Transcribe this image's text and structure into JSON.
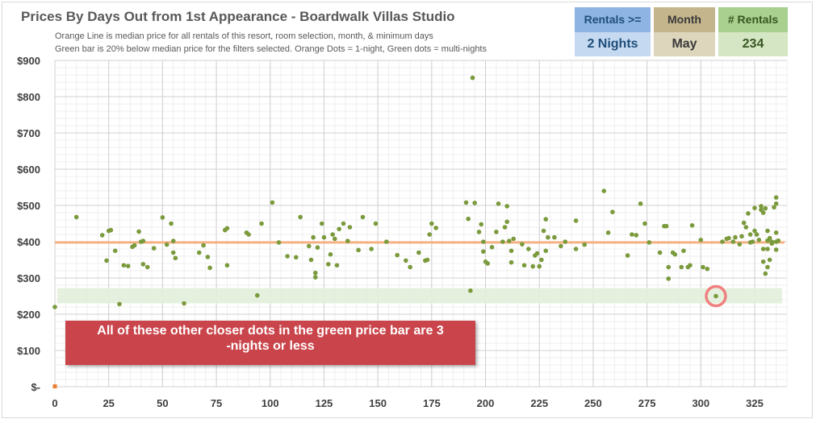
{
  "title": "Prices By Days Out from 1st Appearance - Boardwalk Villas Studio",
  "subtitle_lines": [
    "Orange Line is median price for all rentals of this resort, room selection, month, & minimum days",
    "Green bar is 20% below median price for the filters selected. Orange Dots = 1-night, Green dots = multi-nights"
  ],
  "filters": {
    "rentals": {
      "label": "Rentals >=",
      "value": "2 Nights"
    },
    "month": {
      "label": "Month",
      "value": "May"
    },
    "count": {
      "label": "# Rentals",
      "value": "234"
    }
  },
  "callout": {
    "line1": "All of these other closer dots in the green price bar are 3",
    "line2": "-nights or less"
  },
  "colors": {
    "median_line": "#f4b183",
    "green_dot": "#7a9a3c",
    "orange_dot": "#ed7d31",
    "green_bar": "#e2efda",
    "highlight_circle": "#f08080"
  },
  "chart_data": {
    "type": "scatter",
    "xlim": [
      0,
      340
    ],
    "ylim": [
      0,
      900
    ],
    "x_ticks": [
      0,
      25,
      50,
      75,
      100,
      125,
      150,
      175,
      200,
      225,
      250,
      275,
      300,
      325
    ],
    "y_ticks": [
      0,
      100,
      200,
      300,
      400,
      500,
      600,
      700,
      800,
      900
    ],
    "y_tick_labels": [
      "$-",
      "$100",
      "$200",
      "$300",
      "$400",
      "$500",
      "$600",
      "$700",
      "$800",
      "$900"
    ],
    "x_tick_labels": [
      "0",
      "25",
      "50",
      "75",
      "100",
      "125",
      "150",
      "175",
      "200",
      "225",
      "250",
      "275",
      "300",
      "325"
    ],
    "median_price": 398,
    "green_bar_range": [
      230,
      272
    ],
    "highlight_point": [
      307,
      250
    ],
    "grid": true,
    "series": [
      {
        "name": "1-night",
        "points": [
          [
            0,
            0
          ]
        ]
      },
      {
        "name": "multi-night",
        "points": [
          [
            0,
            220
          ],
          [
            10,
            468
          ],
          [
            22,
            418
          ],
          [
            24,
            348
          ],
          [
            25,
            430
          ],
          [
            26,
            432
          ],
          [
            28,
            375
          ],
          [
            30,
            228
          ],
          [
            32,
            335
          ],
          [
            34,
            333
          ],
          [
            36,
            386
          ],
          [
            37,
            390
          ],
          [
            39,
            428
          ],
          [
            40,
            400
          ],
          [
            41,
            402
          ],
          [
            41,
            338
          ],
          [
            43,
            330
          ],
          [
            46,
            382
          ],
          [
            50,
            467
          ],
          [
            52,
            392
          ],
          [
            54,
            450
          ],
          [
            55,
            402
          ],
          [
            55,
            370
          ],
          [
            56,
            355
          ],
          [
            60,
            230
          ],
          [
            67,
            370
          ],
          [
            69,
            390
          ],
          [
            71,
            358
          ],
          [
            72,
            328
          ],
          [
            79,
            432
          ],
          [
            80,
            437
          ],
          [
            80,
            335
          ],
          [
            89,
            425
          ],
          [
            90,
            420
          ],
          [
            94,
            252
          ],
          [
            96,
            450
          ],
          [
            101,
            508
          ],
          [
            104,
            398
          ],
          [
            108,
            360
          ],
          [
            112,
            357
          ],
          [
            114,
            468
          ],
          [
            118,
            388
          ],
          [
            119,
            350
          ],
          [
            120,
            412
          ],
          [
            121,
            302
          ],
          [
            121,
            314
          ],
          [
            122,
            384
          ],
          [
            124,
            450
          ],
          [
            125,
            412
          ],
          [
            127,
            338
          ],
          [
            128,
            365
          ],
          [
            129,
            420
          ],
          [
            130,
            408
          ],
          [
            131,
            335
          ],
          [
            132,
            435
          ],
          [
            134,
            450
          ],
          [
            136,
            402
          ],
          [
            137,
            440
          ],
          [
            141,
            377
          ],
          [
            143,
            468
          ],
          [
            147,
            380
          ],
          [
            149,
            450
          ],
          [
            154,
            400
          ],
          [
            159,
            363
          ],
          [
            163,
            348
          ],
          [
            165,
            330
          ],
          [
            169,
            370
          ],
          [
            172,
            348
          ],
          [
            173,
            350
          ],
          [
            174,
            420
          ],
          [
            175,
            450
          ],
          [
            177,
            438
          ],
          [
            191,
            508
          ],
          [
            192,
            463
          ],
          [
            193,
            265
          ],
          [
            194,
            852
          ],
          [
            195,
            507
          ],
          [
            197,
            427
          ],
          [
            198,
            448
          ],
          [
            199,
            400
          ],
          [
            199,
            373
          ],
          [
            200,
            345
          ],
          [
            201,
            340
          ],
          [
            203,
            385
          ],
          [
            205,
            427
          ],
          [
            206,
            505
          ],
          [
            208,
            400
          ],
          [
            209,
            440
          ],
          [
            210,
            498
          ],
          [
            210,
            455
          ],
          [
            211,
            402
          ],
          [
            212,
            375
          ],
          [
            212,
            343
          ],
          [
            213,
            408
          ],
          [
            217,
            393
          ],
          [
            218,
            335
          ],
          [
            220,
            380
          ],
          [
            222,
            332
          ],
          [
            223,
            362
          ],
          [
            224,
            368
          ],
          [
            225,
            332
          ],
          [
            226,
            350
          ],
          [
            227,
            430
          ],
          [
            228,
            462
          ],
          [
            228,
            375
          ],
          [
            229,
            412
          ],
          [
            232,
            412
          ],
          [
            235,
            388
          ],
          [
            237,
            400
          ],
          [
            242,
            458
          ],
          [
            242,
            380
          ],
          [
            246,
            392
          ],
          [
            255,
            540
          ],
          [
            257,
            425
          ],
          [
            259,
            482
          ],
          [
            266,
            362
          ],
          [
            268,
            420
          ],
          [
            270,
            418
          ],
          [
            272,
            505
          ],
          [
            274,
            450
          ],
          [
            276,
            398
          ],
          [
            281,
            370
          ],
          [
            283,
            443
          ],
          [
            284,
            443
          ],
          [
            285,
            330
          ],
          [
            285,
            298
          ],
          [
            287,
            370
          ],
          [
            288,
            365
          ],
          [
            291,
            330
          ],
          [
            292,
            375
          ],
          [
            294,
            330
          ],
          [
            295,
            335
          ],
          [
            296,
            445
          ],
          [
            300,
            405
          ],
          [
            301,
            330
          ],
          [
            303,
            325
          ],
          [
            307,
            250
          ],
          [
            310,
            400
          ],
          [
            312,
            408
          ],
          [
            313,
            410
          ],
          [
            315,
            400
          ],
          [
            316,
            412
          ],
          [
            318,
            393
          ],
          [
            319,
            415
          ],
          [
            320,
            452
          ],
          [
            321,
            440
          ],
          [
            322,
            478
          ],
          [
            323,
            420
          ],
          [
            323,
            398
          ],
          [
            324,
            400
          ],
          [
            325,
            493
          ],
          [
            325,
            430
          ],
          [
            326,
            420
          ],
          [
            327,
            405
          ],
          [
            328,
            488
          ],
          [
            328,
            498
          ],
          [
            329,
            480
          ],
          [
            329,
            380
          ],
          [
            329,
            345
          ],
          [
            330,
            492
          ],
          [
            330,
            312
          ],
          [
            331,
            330
          ],
          [
            331,
            380
          ],
          [
            331,
            430
          ],
          [
            331,
            403
          ],
          [
            332,
            410
          ],
          [
            332,
            350
          ],
          [
            333,
            395
          ],
          [
            333,
            400
          ],
          [
            334,
            495
          ],
          [
            335,
            522
          ],
          [
            335,
            505
          ],
          [
            335,
            425
          ],
          [
            335,
            400
          ],
          [
            335,
            378
          ],
          [
            336,
            403
          ]
        ]
      }
    ]
  }
}
